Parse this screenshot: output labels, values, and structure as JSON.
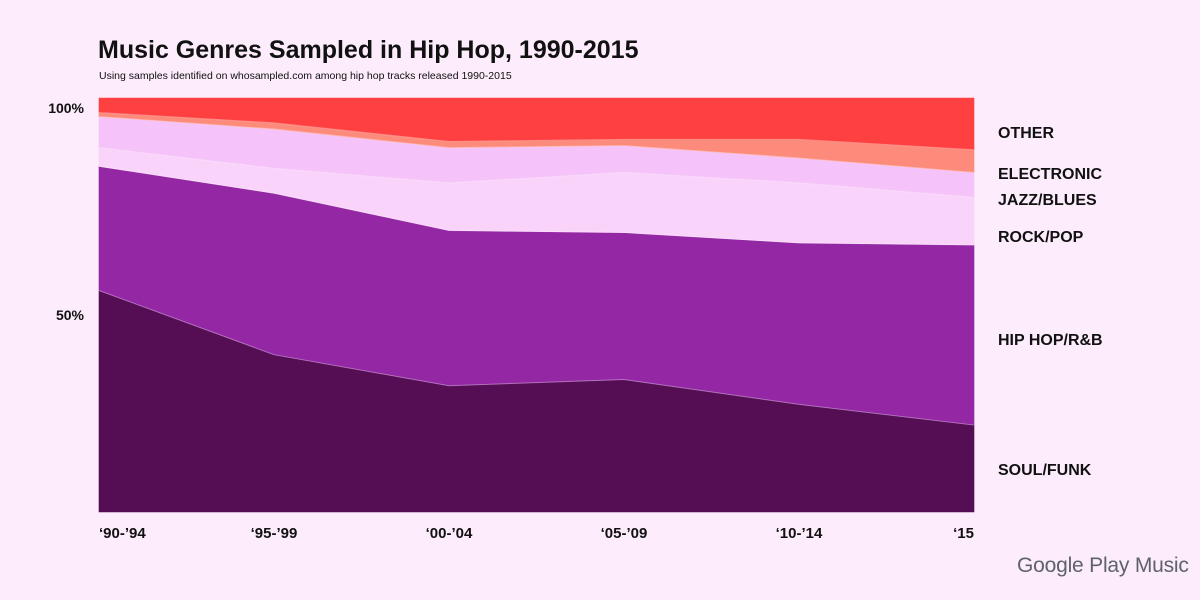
{
  "chart_data": {
    "type": "area",
    "stacked": true,
    "title": "Music Genres Sampled in Hip Hop, 1990-2015",
    "subtitle": "Using samples identified on whosampled.com among hip hop tracks released 1990-2015",
    "categories": [
      "‘90-’94",
      "‘95-’99",
      "‘00-’04",
      "‘05-’09",
      "‘10-’14",
      "‘15"
    ],
    "y_ticks": [
      {
        "value": 50,
        "label": "50%"
      },
      {
        "value": 100,
        "label": "100%"
      }
    ],
    "ylim": [
      0,
      100
    ],
    "grid": false,
    "legend_placement": "right",
    "series": [
      {
        "name": "SOUL/FUNK",
        "color": "#550e54",
        "values": [
          53.5,
          38,
          30.5,
          32,
          26,
          21
        ]
      },
      {
        "name": "HIP HOP/R&B",
        "color": "#9327a4",
        "values": [
          30,
          39,
          37.5,
          35.5,
          39,
          43.5
        ]
      },
      {
        "name": "ROCK/POP",
        "color": "#fad3fb",
        "values": [
          4.5,
          6,
          11.5,
          14.5,
          14.5,
          11.5
        ]
      },
      {
        "name": "JAZZ/BLUES",
        "color": "#f5c3f9",
        "values": [
          7.5,
          9.5,
          8.5,
          6.5,
          6,
          6
        ]
      },
      {
        "name": "ELECTRONIC",
        "color": "#fd8b7c",
        "values": [
          1,
          1.5,
          1.5,
          1.5,
          4.5,
          5.5
        ]
      },
      {
        "name": "OTHER",
        "color": "#fe4140",
        "values": [
          3.5,
          6,
          10.5,
          10,
          10,
          12.5
        ]
      }
    ]
  },
  "branding": {
    "text": "Google Play Music"
  }
}
